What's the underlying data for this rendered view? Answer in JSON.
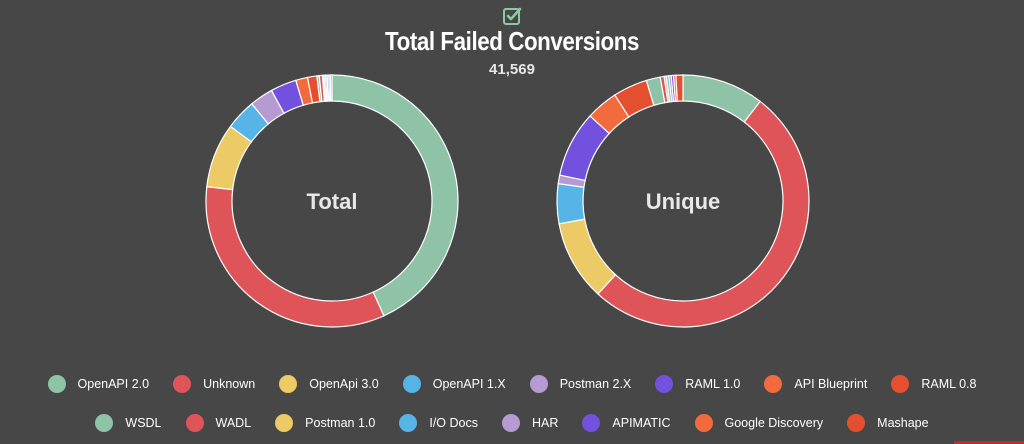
{
  "header": {
    "title": "Total Failed Conversions",
    "total": "41,569",
    "check_icon": "checkbox-checked-icon",
    "check_color": "#8ec9a6"
  },
  "chart_data": [
    {
      "type": "pie",
      "center_label": "Total",
      "slices": [
        {
          "label": "OpenAPI 2.0",
          "value": 42.9,
          "color": "#8ec3a8"
        },
        {
          "label": "Unknown",
          "value": 33.3,
          "color": "#de5459"
        },
        {
          "label": "OpenApi 3.0",
          "value": 8.2,
          "color": "#ecca65"
        },
        {
          "label": "OpenAPI 1.X",
          "value": 3.9,
          "color": "#56b4e6"
        },
        {
          "label": "Postman 2.X",
          "value": 3.0,
          "color": "#b59bd1"
        },
        {
          "label": "RAML 1.0",
          "value": 3.3,
          "color": "#7251de"
        },
        {
          "label": "API Blueprint",
          "value": 1.5,
          "color": "#f36a3c"
        },
        {
          "label": "RAML 0.8",
          "value": 1.2,
          "color": "#e34f2f"
        },
        {
          "label": "WSDL",
          "value": 0.3,
          "color": "#8ec3a8"
        },
        {
          "label": "WADL",
          "value": 0.4,
          "color": "#de5459"
        },
        {
          "label": "Postman 1.0",
          "value": 0.2,
          "color": "#ecca65"
        },
        {
          "label": "I/O Docs",
          "value": 0.2,
          "color": "#56b4e6"
        },
        {
          "label": "HAR",
          "value": 0.2,
          "color": "#b59bd1"
        },
        {
          "label": "APIMATIC",
          "value": 0.2,
          "color": "#7251de"
        },
        {
          "label": "Google Discovery",
          "value": 0.2,
          "color": "#f36a3c"
        },
        {
          "label": "Mashape",
          "value": 0.2,
          "color": "#e34f2f"
        }
      ]
    },
    {
      "type": "pie",
      "center_label": "Unique",
      "slices": [
        {
          "label": "OpenAPI 2.0",
          "value": 10.5,
          "color": "#8ec3a8"
        },
        {
          "label": "Unknown",
          "value": 51.3,
          "color": "#de5459"
        },
        {
          "label": "OpenApi 3.0",
          "value": 10.3,
          "color": "#ecca65"
        },
        {
          "label": "OpenAPI 1.X",
          "value": 5.1,
          "color": "#56b4e6"
        },
        {
          "label": "Postman 2.X",
          "value": 1.1,
          "color": "#b59bd1"
        },
        {
          "label": "RAML 1.0",
          "value": 8.5,
          "color": "#7251de"
        },
        {
          "label": "API Blueprint",
          "value": 4.1,
          "color": "#f36a3c"
        },
        {
          "label": "RAML 0.8",
          "value": 4.4,
          "color": "#e34f2f"
        },
        {
          "label": "WSDL",
          "value": 1.8,
          "color": "#8ec3a8"
        },
        {
          "label": "WADL",
          "value": 0.5,
          "color": "#de5459"
        },
        {
          "label": "Postman 1.0",
          "value": 0.3,
          "color": "#ecca65"
        },
        {
          "label": "I/O Docs",
          "value": 0.3,
          "color": "#56b4e6"
        },
        {
          "label": "HAR",
          "value": 0.3,
          "color": "#b59bd1"
        },
        {
          "label": "APIMATIC",
          "value": 0.3,
          "color": "#7251de"
        },
        {
          "label": "Google Discovery",
          "value": 0.3,
          "color": "#f36a3c"
        },
        {
          "label": "Mashape",
          "value": 0.9,
          "color": "#e34f2f"
        }
      ]
    }
  ],
  "legend": {
    "rows": [
      [
        {
          "label": "OpenAPI 2.0",
          "color": "#8ec3a8"
        },
        {
          "label": "Unknown",
          "color": "#de5459"
        },
        {
          "label": "OpenApi 3.0",
          "color": "#ecca65"
        },
        {
          "label": "OpenAPI 1.X",
          "color": "#56b4e6"
        },
        {
          "label": "Postman 2.X",
          "color": "#b59bd1"
        },
        {
          "label": "RAML 1.0",
          "color": "#7251de"
        },
        {
          "label": "API Blueprint",
          "color": "#f36a3c"
        },
        {
          "label": "RAML 0.8",
          "color": "#e34f2f"
        }
      ],
      [
        {
          "label": "WSDL",
          "color": "#8ec3a8"
        },
        {
          "label": "WADL",
          "color": "#de5459"
        },
        {
          "label": "Postman 1.0",
          "color": "#ecca65"
        },
        {
          "label": "I/O Docs",
          "color": "#56b4e6"
        },
        {
          "label": "HAR",
          "color": "#b59bd1"
        },
        {
          "label": "APIMATIC",
          "color": "#7251de"
        },
        {
          "label": "Google Discovery",
          "color": "#f36a3c"
        },
        {
          "label": "Mashape",
          "color": "#e34f2f"
        }
      ]
    ]
  }
}
